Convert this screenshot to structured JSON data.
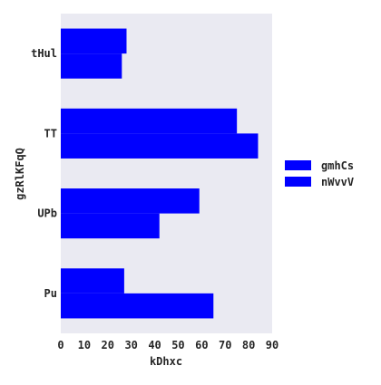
{
  "chart_data": {
    "type": "bar",
    "orientation": "horizontal",
    "categories": [
      "tHul",
      "TT",
      "UPb",
      "Pu"
    ],
    "series": [
      {
        "name": "gmhCs",
        "values": [
          28,
          75,
          59,
          27
        ],
        "color": "#0000ff"
      },
      {
        "name": "nWvvV",
        "values": [
          26,
          84,
          42,
          65
        ],
        "color": "#0000ff"
      }
    ],
    "xlabel": "kDhxc",
    "ylabel": "gzRlKFqQ",
    "xlim": [
      0,
      90
    ],
    "xticks": [
      0,
      10,
      20,
      30,
      40,
      50,
      60,
      70,
      80,
      90
    ],
    "grid": false,
    "legend_position": "right",
    "plot_background": "#eaeaf2"
  }
}
